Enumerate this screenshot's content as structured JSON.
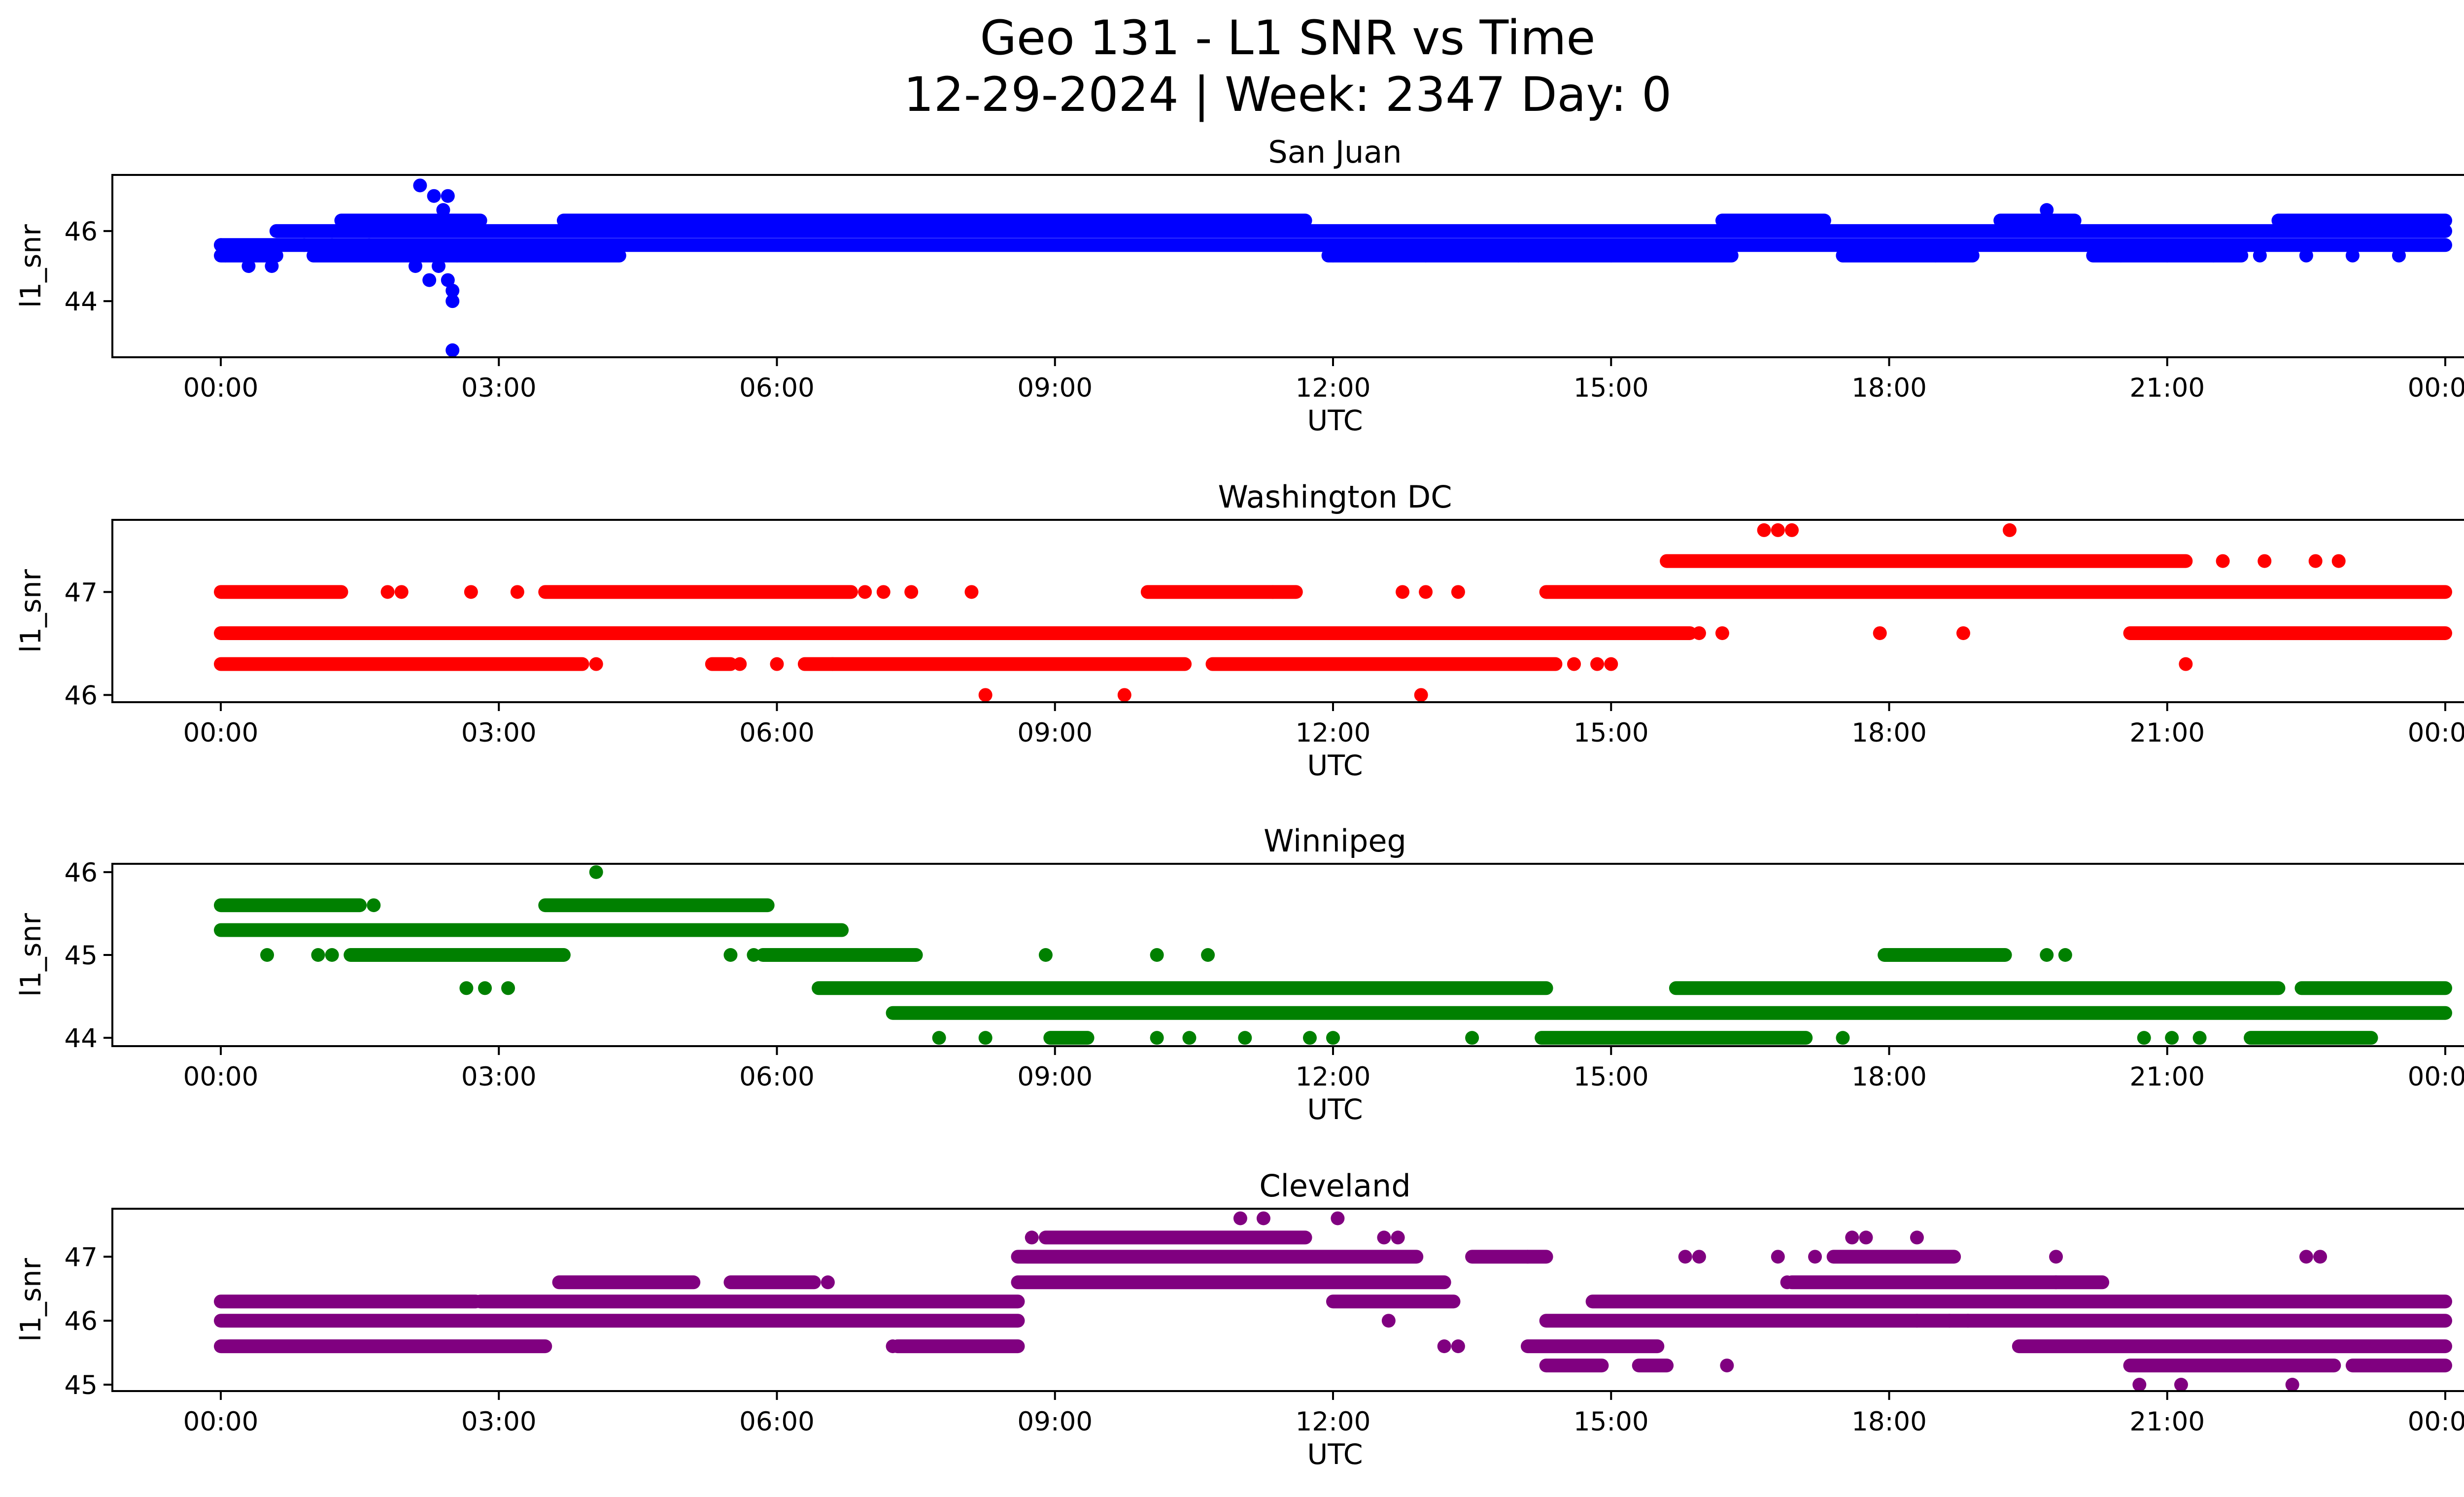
{
  "chart_data": {
    "type": "scatter",
    "title_line1": "Geo 131 - L1 SNR vs Time",
    "title_line2": "12-29-2024 | Week: 2347 Day: 0",
    "x_tick_labels": [
      "00:00",
      "03:00",
      "06:00",
      "09:00",
      "12:00",
      "15:00",
      "18:00",
      "21:00",
      "00:00"
    ],
    "x_range_hours": [
      0,
      24
    ],
    "xlabel": "UTC",
    "ylabel": "l1_snr",
    "panels": [
      {
        "name": "San Juan",
        "color": "#0000ff",
        "ylim": [
          42.4,
          47.6
        ],
        "yticks": [
          44,
          46
        ],
        "ytick_labels": [
          "44",
          "46"
        ],
        "levels": [
          45.0,
          45.3,
          45.6,
          46.0,
          46.3
        ],
        "points": [
          [
            2.15,
            47.3
          ],
          [
            2.3,
            47.0
          ],
          [
            2.45,
            47.0
          ],
          [
            2.4,
            46.6
          ],
          [
            2.2,
            46.3
          ],
          [
            2.35,
            45.0
          ],
          [
            2.45,
            44.6
          ],
          [
            2.25,
            44.6
          ],
          [
            2.5,
            44.3
          ],
          [
            2.5,
            44.0
          ],
          [
            2.5,
            42.6
          ],
          [
            2.1,
            45.0
          ],
          [
            2.55,
            45.3
          ],
          [
            19.7,
            46.6
          ],
          [
            0.0,
            45.6
          ],
          [
            0.05,
            45.3
          ],
          [
            0.3,
            45.0
          ],
          [
            0.55,
            45.0
          ],
          [
            0.9,
            45.6
          ],
          [
            1.2,
            45.6
          ],
          [
            1.6,
            45.6
          ],
          [
            12.0,
            45.3
          ],
          [
            13.0,
            45.3
          ],
          [
            14.0,
            45.3
          ],
          [
            15.0,
            45.3
          ],
          [
            17.5,
            45.3
          ],
          [
            18.5,
            45.3
          ],
          [
            20.5,
            45.3
          ],
          [
            21.0,
            45.3
          ],
          [
            21.5,
            45.3
          ],
          [
            22.0,
            45.3
          ],
          [
            22.5,
            45.3
          ],
          [
            23.0,
            45.3
          ],
          [
            23.5,
            45.3
          ]
        ],
        "segments": [
          {
            "level": 45.6,
            "start": 0.0,
            "end": 24.0
          },
          {
            "level": 45.3,
            "start": 0.0,
            "end": 0.6
          },
          {
            "level": 45.3,
            "start": 1.0,
            "end": 4.3
          },
          {
            "level": 45.3,
            "start": 11.95,
            "end": 16.3
          },
          {
            "level": 45.3,
            "start": 17.5,
            "end": 18.9
          },
          {
            "level": 45.3,
            "start": 20.2,
            "end": 21.8
          },
          {
            "level": 46.0,
            "start": 0.6,
            "end": 24.0
          },
          {
            "level": 46.3,
            "start": 1.3,
            "end": 2.8
          },
          {
            "level": 46.3,
            "start": 3.7,
            "end": 11.7
          },
          {
            "level": 46.3,
            "start": 16.2,
            "end": 17.3
          },
          {
            "level": 46.3,
            "start": 19.2,
            "end": 20.0
          },
          {
            "level": 46.3,
            "start": 22.2,
            "end": 24.0
          }
        ]
      },
      {
        "name": "Washington DC",
        "color": "#ff0000",
        "ylim": [
          45.93,
          47.7
        ],
        "yticks": [
          46,
          47
        ],
        "ytick_labels": [
          "46",
          "47"
        ],
        "levels": [
          46.0,
          46.3,
          46.6,
          47.0,
          47.3,
          47.6
        ],
        "points": [
          [
            8.25,
            46.0
          ],
          [
            9.75,
            46.0
          ],
          [
            12.95,
            46.0
          ],
          [
            16.65,
            47.6
          ],
          [
            16.8,
            47.6
          ],
          [
            16.95,
            47.6
          ],
          [
            19.3,
            47.6
          ],
          [
            21.2,
            46.3
          ],
          [
            21.6,
            47.3
          ],
          [
            22.05,
            47.3
          ],
          [
            22.6,
            47.3
          ],
          [
            22.85,
            47.3
          ],
          [
            18.8,
            46.6
          ],
          [
            17.9,
            46.6
          ],
          [
            16.2,
            46.6
          ],
          [
            15.95,
            46.6
          ],
          [
            8.1,
            47.0
          ],
          [
            7.45,
            47.0
          ],
          [
            6.95,
            47.0
          ],
          [
            7.15,
            47.0
          ],
          [
            2.7,
            47.0
          ],
          [
            3.2,
            47.0
          ],
          [
            1.8,
            47.0
          ],
          [
            1.95,
            47.0
          ],
          [
            4.05,
            46.3
          ],
          [
            5.6,
            46.3
          ],
          [
            6.0,
            46.3
          ],
          [
            6.6,
            46.3
          ],
          [
            13.0,
            47.0
          ],
          [
            13.35,
            47.0
          ],
          [
            12.75,
            47.0
          ],
          [
            11.35,
            47.0
          ],
          [
            14.6,
            46.3
          ],
          [
            14.85,
            46.3
          ],
          [
            15.0,
            46.3
          ]
        ],
        "segments": [
          {
            "level": 46.6,
            "start": 0.0,
            "end": 15.85
          },
          {
            "level": 46.6,
            "start": 20.6,
            "end": 24.0
          },
          {
            "level": 46.3,
            "start": 0.0,
            "end": 3.9
          },
          {
            "level": 46.3,
            "start": 5.3,
            "end": 5.5
          },
          {
            "level": 46.3,
            "start": 6.3,
            "end": 10.4
          },
          {
            "level": 46.3,
            "start": 10.7,
            "end": 14.4
          },
          {
            "level": 47.0,
            "start": 0.0,
            "end": 1.3
          },
          {
            "level": 47.0,
            "start": 3.5,
            "end": 6.8
          },
          {
            "level": 47.0,
            "start": 10.0,
            "end": 11.6
          },
          {
            "level": 47.0,
            "start": 14.3,
            "end": 24.0
          },
          {
            "level": 47.3,
            "start": 15.6,
            "end": 21.2
          }
        ]
      },
      {
        "name": "Winnipeg",
        "color": "#008000",
        "ylim": [
          43.9,
          46.1
        ],
        "yticks": [
          44,
          45,
          46
        ],
        "ytick_labels": [
          "44",
          "45",
          "46"
        ],
        "levels": [
          44.0,
          44.3,
          44.6,
          45.0,
          45.3,
          45.6
        ],
        "points": [
          [
            4.05,
            46.0
          ],
          [
            0.5,
            45.0
          ],
          [
            1.05,
            45.0
          ],
          [
            1.2,
            45.0
          ],
          [
            8.9,
            45.0
          ],
          [
            10.1,
            45.0
          ],
          [
            10.65,
            45.0
          ],
          [
            19.7,
            45.0
          ],
          [
            19.9,
            45.0
          ],
          [
            2.65,
            44.6
          ],
          [
            2.85,
            44.6
          ],
          [
            3.1,
            44.6
          ],
          [
            7.75,
            44.0
          ],
          [
            8.25,
            44.0
          ],
          [
            10.1,
            44.0
          ],
          [
            10.45,
            44.0
          ],
          [
            11.05,
            44.0
          ],
          [
            11.75,
            44.0
          ],
          [
            12.0,
            44.0
          ],
          [
            13.5,
            44.0
          ],
          [
            17.5,
            44.0
          ],
          [
            20.75,
            44.0
          ],
          [
            21.05,
            44.0
          ],
          [
            21.35,
            44.0
          ],
          [
            5.5,
            45.0
          ],
          [
            5.75,
            45.0
          ],
          [
            1.65,
            45.6
          ]
        ],
        "segments": [
          {
            "level": 45.6,
            "start": 0.0,
            "end": 1.5
          },
          {
            "level": 45.6,
            "start": 3.5,
            "end": 5.9
          },
          {
            "level": 45.3,
            "start": 0.0,
            "end": 6.7
          },
          {
            "level": 45.0,
            "start": 1.4,
            "end": 3.7
          },
          {
            "level": 45.0,
            "start": 5.85,
            "end": 7.5
          },
          {
            "level": 45.0,
            "start": 17.95,
            "end": 19.25
          },
          {
            "level": 44.6,
            "start": 6.45,
            "end": 14.3
          },
          {
            "level": 44.6,
            "start": 15.7,
            "end": 22.2
          },
          {
            "level": 44.6,
            "start": 22.45,
            "end": 24.0
          },
          {
            "level": 44.3,
            "start": 7.25,
            "end": 24.0
          },
          {
            "level": 44.0,
            "start": 8.95,
            "end": 9.35
          },
          {
            "level": 44.0,
            "start": 14.25,
            "end": 17.1
          },
          {
            "level": 44.0,
            "start": 21.9,
            "end": 23.2
          }
        ]
      },
      {
        "name": "Cleveland",
        "color": "#800080",
        "ylim": [
          44.9,
          47.75
        ],
        "yticks": [
          45,
          46,
          47
        ],
        "ytick_labels": [
          "45",
          "46",
          "47"
        ],
        "levels": [
          45.0,
          45.3,
          45.6,
          46.0,
          46.3,
          46.6,
          47.0,
          47.3,
          47.6
        ],
        "points": [
          [
            11.0,
            47.6
          ],
          [
            11.25,
            47.6
          ],
          [
            12.05,
            47.6
          ],
          [
            8.75,
            47.3
          ],
          [
            12.55,
            47.3
          ],
          [
            12.7,
            47.3
          ],
          [
            16.25,
            45.3
          ],
          [
            20.7,
            45.0
          ],
          [
            21.15,
            45.0
          ],
          [
            22.35,
            45.0
          ],
          [
            12.6,
            46.0
          ],
          [
            16.9,
            46.6
          ],
          [
            17.6,
            47.3
          ],
          [
            17.75,
            47.3
          ],
          [
            18.3,
            47.3
          ],
          [
            19.8,
            47.0
          ],
          [
            13.2,
            45.6
          ],
          [
            13.35,
            45.6
          ],
          [
            6.55,
            46.6
          ],
          [
            7.25,
            45.6
          ],
          [
            14.1,
            47.0
          ],
          [
            15.95,
            47.0
          ],
          [
            15.8,
            47.0
          ],
          [
            16.8,
            47.0
          ],
          [
            17.2,
            47.0
          ],
          [
            18.3,
            46.0
          ],
          [
            18.65,
            46.0
          ],
          [
            18.85,
            46.0
          ],
          [
            19.8,
            46.6
          ],
          [
            22.5,
            47.0
          ],
          [
            22.65,
            47.0
          ]
        ],
        "segments": [
          {
            "level": 46.0,
            "start": 0.0,
            "end": 8.6
          },
          {
            "level": 46.0,
            "start": 14.3,
            "end": 24.0
          },
          {
            "level": 46.3,
            "start": 0.0,
            "end": 2.75
          },
          {
            "level": 46.3,
            "start": 2.8,
            "end": 8.6
          },
          {
            "level": 46.3,
            "start": 12.0,
            "end": 13.3
          },
          {
            "level": 46.3,
            "start": 14.8,
            "end": 24.0
          },
          {
            "level": 45.6,
            "start": 0.0,
            "end": 3.5
          },
          {
            "level": 45.6,
            "start": 7.3,
            "end": 8.6
          },
          {
            "level": 45.6,
            "start": 19.4,
            "end": 24.0
          },
          {
            "level": 45.6,
            "start": 14.1,
            "end": 15.5
          },
          {
            "level": 46.6,
            "start": 3.65,
            "end": 5.1
          },
          {
            "level": 46.6,
            "start": 5.5,
            "end": 6.4
          },
          {
            "level": 46.6,
            "start": 8.6,
            "end": 13.2
          },
          {
            "level": 46.6,
            "start": 16.95,
            "end": 20.3
          },
          {
            "level": 47.0,
            "start": 8.6,
            "end": 12.9
          },
          {
            "level": 47.0,
            "start": 13.5,
            "end": 14.3
          },
          {
            "level": 47.0,
            "start": 17.4,
            "end": 18.7
          },
          {
            "level": 47.3,
            "start": 8.9,
            "end": 11.7
          },
          {
            "level": 45.3,
            "start": 14.3,
            "end": 14.9
          },
          {
            "level": 45.3,
            "start": 15.3,
            "end": 15.6
          },
          {
            "level": 45.3,
            "start": 20.6,
            "end": 22.8
          },
          {
            "level": 45.3,
            "start": 23.0,
            "end": 24.0
          }
        ]
      }
    ]
  }
}
